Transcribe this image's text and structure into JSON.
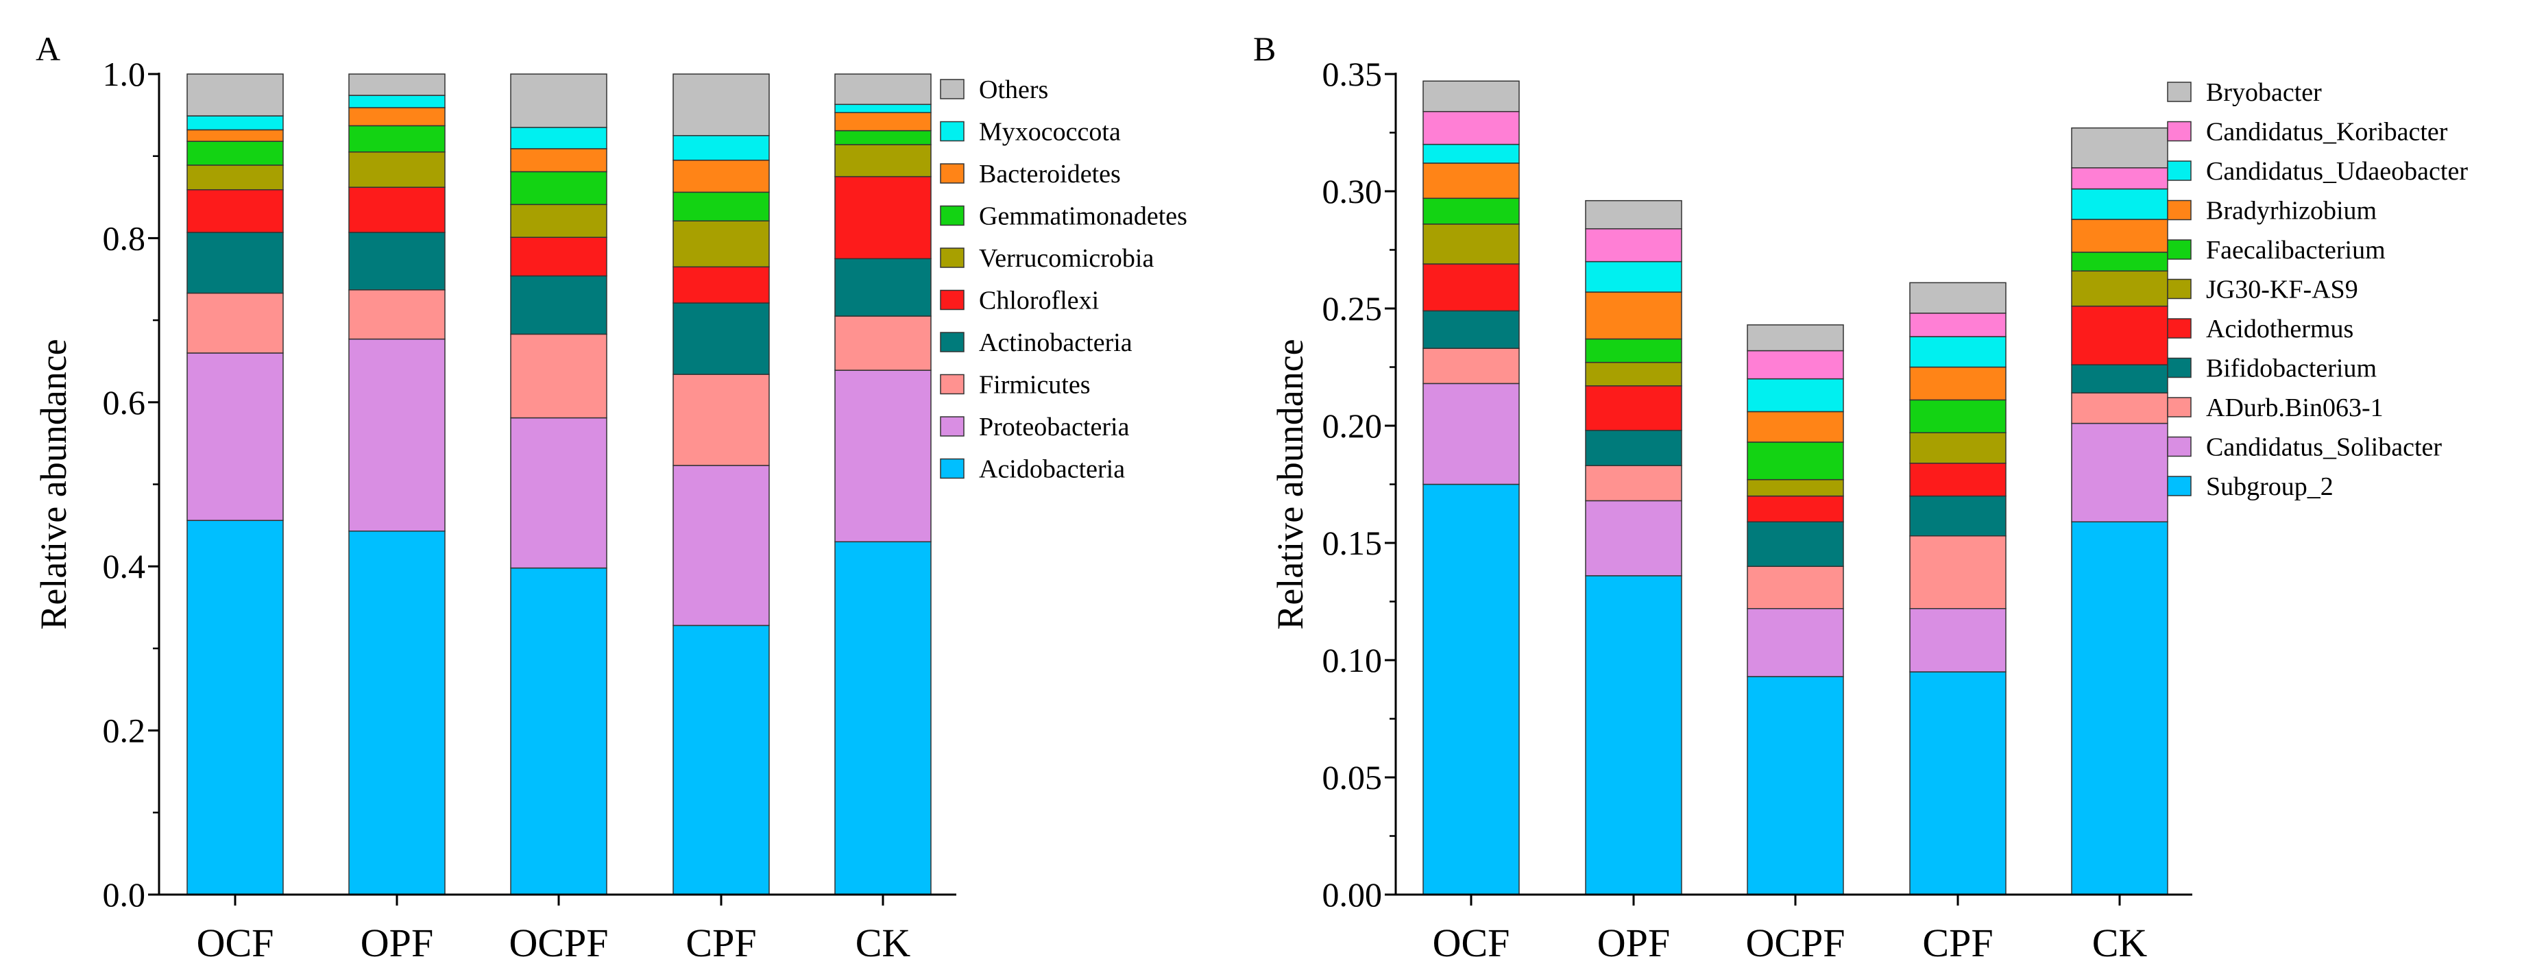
{
  "chart_data": [
    {
      "panel": "A",
      "type": "bar",
      "stacked": true,
      "title": "",
      "xlabel": "",
      "ylabel": "Relative abundance",
      "ylim": [
        0,
        1.0
      ],
      "yticks": [
        "0.0",
        "0.2",
        "0.4",
        "0.6",
        "0.8",
        "1.0"
      ],
      "categories": [
        "OCF",
        "OPF",
        "OCPF",
        "CPF",
        "CK"
      ],
      "legend_position": "right",
      "series": [
        {
          "name": "Acidobacteria",
          "color": "#00bfff",
          "values": [
            0.456,
            0.443,
            0.398,
            0.328,
            0.43
          ]
        },
        {
          "name": "Proteobacteria",
          "color": "#d98ee3",
          "values": [
            0.204,
            0.234,
            0.183,
            0.195,
            0.209
          ]
        },
        {
          "name": "Firmicutes",
          "color": "#ff9290",
          "values": [
            0.073,
            0.06,
            0.102,
            0.111,
            0.066
          ]
        },
        {
          "name": "Actinobacteria",
          "color": "#007b7b",
          "values": [
            0.074,
            0.07,
            0.071,
            0.087,
            0.07
          ]
        },
        {
          "name": "Chloroflexi",
          "color": "#fd1b1b",
          "values": [
            0.052,
            0.055,
            0.047,
            0.044,
            0.1
          ]
        },
        {
          "name": "Verrucomicrobia",
          "color": "#a8a000",
          "values": [
            0.03,
            0.043,
            0.04,
            0.056,
            0.039
          ]
        },
        {
          "name": "Gemmatimonadetes",
          "color": "#13d313",
          "values": [
            0.029,
            0.032,
            0.04,
            0.035,
            0.017
          ]
        },
        {
          "name": "Bacteroidetes",
          "color": "#ff8417",
          "values": [
            0.014,
            0.022,
            0.028,
            0.039,
            0.022
          ]
        },
        {
          "name": "Myxococcota",
          "color": "#00f0f0",
          "values": [
            0.017,
            0.015,
            0.026,
            0.03,
            0.01
          ]
        },
        {
          "name": "Others",
          "color": "#c0c0c0",
          "values": [
            0.051,
            0.026,
            0.065,
            0.075,
            0.037
          ]
        }
      ]
    },
    {
      "panel": "B",
      "type": "bar",
      "stacked": true,
      "title": "",
      "xlabel": "",
      "ylabel": "Relative abundance",
      "ylim": [
        0,
        0.35
      ],
      "yticks": [
        "0.00",
        "0.05",
        "0.10",
        "0.15",
        "0.20",
        "0.25",
        "0.30",
        "0.35"
      ],
      "categories": [
        "OCF",
        "OPF",
        "OCPF",
        "CPF",
        "CK"
      ],
      "legend_position": "right",
      "series": [
        {
          "name": "Subgroup_2",
          "color": "#00bfff",
          "values": [
            0.175,
            0.136,
            0.093,
            0.095,
            0.159
          ]
        },
        {
          "name": "Candidatus_Solibacter",
          "color": "#d98ee3",
          "values": [
            0.043,
            0.032,
            0.029,
            0.027,
            0.042
          ]
        },
        {
          "name": "ADurb.Bin063-1",
          "color": "#ff9290",
          "values": [
            0.015,
            0.015,
            0.018,
            0.031,
            0.013
          ]
        },
        {
          "name": "Bifidobacterium",
          "color": "#007b7b",
          "values": [
            0.016,
            0.015,
            0.019,
            0.017,
            0.012
          ]
        },
        {
          "name": "Acidothermus",
          "color": "#fd1b1b",
          "values": [
            0.02,
            0.019,
            0.011,
            0.014,
            0.025
          ]
        },
        {
          "name": "JG30-KF-AS9",
          "color": "#a8a000",
          "values": [
            0.017,
            0.01,
            0.007,
            0.013,
            0.015
          ]
        },
        {
          "name": "Faecalibacterium",
          "color": "#13d313",
          "values": [
            0.011,
            0.01,
            0.016,
            0.014,
            0.008
          ]
        },
        {
          "name": "Bradyrhizobium",
          "color": "#ff8417",
          "values": [
            0.015,
            0.02,
            0.013,
            0.014,
            0.014
          ]
        },
        {
          "name": "Candidatus_Udaeobacter",
          "color": "#00f0f0",
          "values": [
            0.008,
            0.013,
            0.014,
            0.013,
            0.013
          ]
        },
        {
          "name": "Candidatus_Koribacter",
          "color": "#ff7fd5",
          "values": [
            0.014,
            0.014,
            0.012,
            0.01,
            0.009
          ]
        },
        {
          "name": "Bryobacter",
          "color": "#c0c0c0",
          "values": [
            0.013,
            0.012,
            0.011,
            0.013,
            0.017
          ]
        }
      ]
    }
  ]
}
